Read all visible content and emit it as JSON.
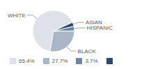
{
  "chart_data": {
    "type": "pie",
    "categories": [
      "WHITE",
      "BLACK",
      "HISPANIC",
      "ASIAN"
    ],
    "values": [
      65.4,
      27.7,
      3.7,
      3.2
    ],
    "value_labels": [
      "65.4%",
      "27.7%",
      "3.7%",
      null
    ],
    "colors": [
      "#dde2ea",
      "#a9b6c6",
      "#6d86a3",
      "#2e4a6e"
    ],
    "legend": "bottom"
  }
}
